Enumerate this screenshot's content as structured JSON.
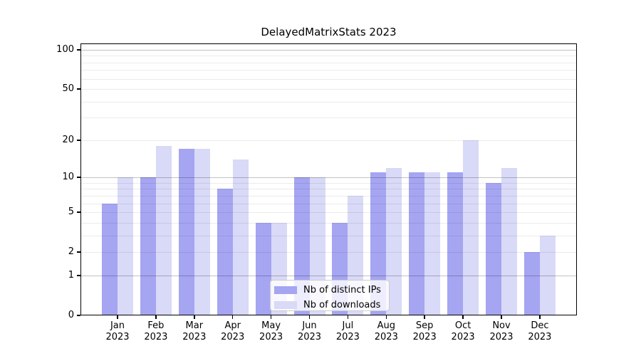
{
  "title": "DelayedMatrixStats 2023",
  "chart_data": {
    "type": "bar",
    "title": "DelayedMatrixStats 2023",
    "categories": [
      {
        "month": "Jan",
        "year": "2023"
      },
      {
        "month": "Feb",
        "year": "2023"
      },
      {
        "month": "Mar",
        "year": "2023"
      },
      {
        "month": "Apr",
        "year": "2023"
      },
      {
        "month": "May",
        "year": "2023"
      },
      {
        "month": "Jun",
        "year": "2023"
      },
      {
        "month": "Jul",
        "year": "2023"
      },
      {
        "month": "Aug",
        "year": "2023"
      },
      {
        "month": "Sep",
        "year": "2023"
      },
      {
        "month": "Oct",
        "year": "2023"
      },
      {
        "month": "Nov",
        "year": "2023"
      },
      {
        "month": "Dec",
        "year": "2023"
      }
    ],
    "series": [
      {
        "name": "Nb of distinct IPs",
        "color": "#a5a5f2",
        "values": [
          6,
          10,
          17,
          8,
          4,
          10,
          4,
          11,
          11,
          11,
          9,
          2
        ]
      },
      {
        "name": "Nb of downloads",
        "color": "#d9d9f8",
        "values": [
          10,
          18,
          17,
          14,
          4,
          10,
          7,
          12,
          11,
          20,
          12,
          3
        ]
      }
    ],
    "xlabel": "",
    "ylabel": "",
    "y_axis": {
      "scale": "log1p",
      "min": 0,
      "max": 100,
      "tick_labels": [
        100,
        50,
        20,
        10,
        5,
        2,
        1,
        0
      ]
    },
    "gridlines": {
      "on": true,
      "minor": [
        2,
        3,
        4,
        5,
        6,
        7,
        8,
        9,
        20,
        30,
        40,
        50,
        60,
        70,
        80,
        90
      ],
      "major": [
        1,
        10,
        100
      ]
    },
    "legend": {
      "position": "bottom-center",
      "entries": [
        "Nb of distinct IPs",
        "Nb of downloads"
      ]
    }
  }
}
